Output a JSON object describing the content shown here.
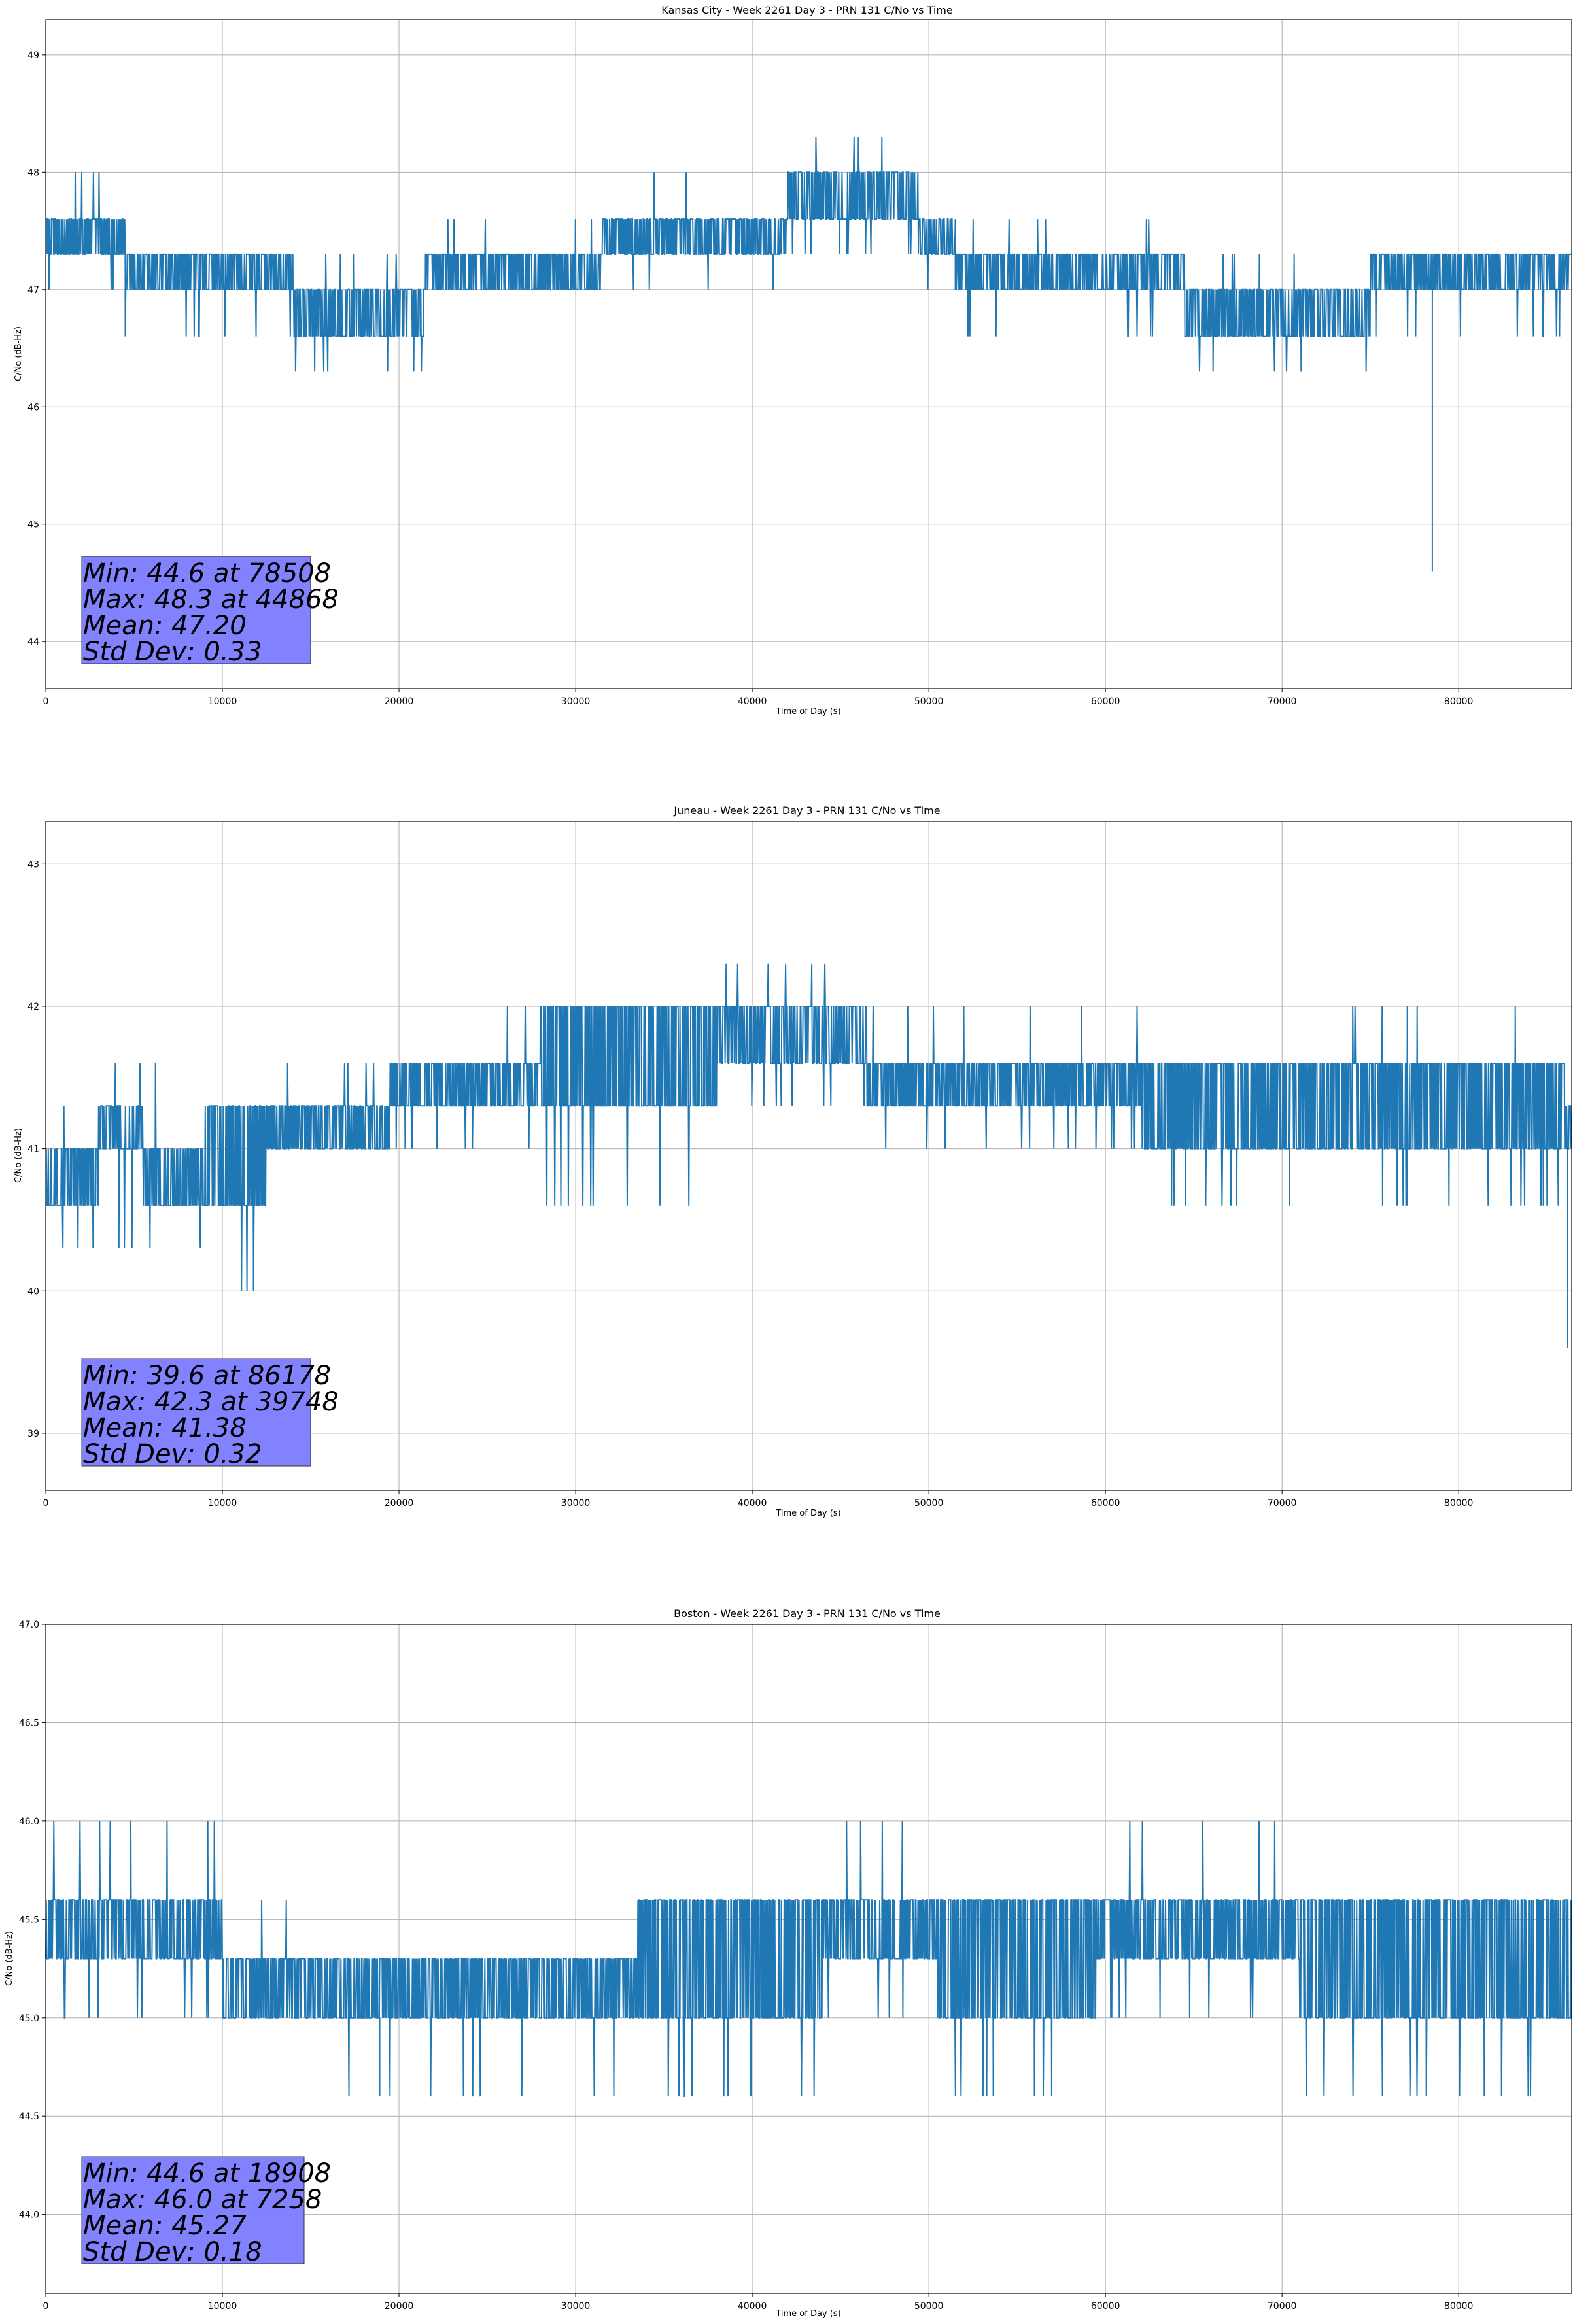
{
  "chart_data": [
    {
      "type": "line",
      "title": "Kansas City - Week 2261 Day 3 - PRN 131 C/No vs Time",
      "xlabel": "Time of Day (s)",
      "ylabel": "C/No (dB-Hz)",
      "xlim": [
        0,
        86400
      ],
      "ylim": [
        43.6,
        49.3
      ],
      "x_ticks": [
        0,
        10000,
        20000,
        30000,
        40000,
        50000,
        60000,
        70000,
        80000
      ],
      "y_ticks": [
        44,
        45,
        46,
        47,
        48,
        49
      ],
      "y_tick_labels": [
        "44",
        "45",
        "46",
        "47",
        "48",
        "49"
      ],
      "grid": true,
      "series": [
        {
          "name": "C/No",
          "color": "#1f77b4",
          "bands": [
            {
              "x": [
                0,
                4500
              ],
              "low": 47.3,
              "high": 47.6,
              "dips": [
                47.0
              ],
              "spikes": [
                48.0
              ],
              "density": 1.4
            },
            {
              "x": [
                4500,
                14000
              ],
              "low": 47.0,
              "high": 47.3,
              "dips": [
                46.6
              ],
              "spikes": [],
              "density": 1.3
            },
            {
              "x": [
                14000,
                21500
              ],
              "low": 46.6,
              "high": 47.0,
              "dips": [
                46.3
              ],
              "spikes": [
                47.3
              ],
              "density": 1.3
            },
            {
              "x": [
                21500,
                31500
              ],
              "low": 47.0,
              "high": 47.3,
              "dips": [],
              "spikes": [
                47.6
              ],
              "density": 1.4
            },
            {
              "x": [
                31500,
                42000
              ],
              "low": 47.3,
              "high": 47.6,
              "dips": [
                47.0
              ],
              "spikes": [
                48.0
              ],
              "density": 1.4
            },
            {
              "x": [
                42000,
                49500
              ],
              "low": 47.6,
              "high": 48.0,
              "dips": [
                47.3
              ],
              "spikes": [
                48.3
              ],
              "density": 1.2
            },
            {
              "x": [
                49500,
                51500
              ],
              "low": 47.3,
              "high": 47.6,
              "dips": [
                47.0
              ],
              "spikes": [],
              "density": 1.0
            },
            {
              "x": [
                51500,
                64500
              ],
              "low": 47.0,
              "high": 47.3,
              "dips": [
                46.6
              ],
              "spikes": [
                47.6
              ],
              "density": 1.4
            },
            {
              "x": [
                64500,
                75000
              ],
              "low": 46.6,
              "high": 47.0,
              "dips": [
                46.3
              ],
              "spikes": [
                47.3
              ],
              "density": 1.3
            },
            {
              "x": [
                75000,
                86400
              ],
              "low": 47.0,
              "high": 47.3,
              "dips": [
                46.6
              ],
              "spikes": [],
              "density": 1.3
            }
          ],
          "min_point": {
            "x": 78508,
            "y": 44.6
          }
        }
      ],
      "stats": {
        "min_text": "Min: 44.6 at 78508",
        "max_text": "Max: 48.3 at 44868",
        "mean_text": "Mean: 47.20",
        "std_text": "Std Dev: 0.33"
      },
      "stats_box_color": "#8080ff"
    },
    {
      "type": "line",
      "title": "Juneau - Week 2261 Day 3 - PRN 131 C/No vs Time",
      "xlabel": "Time of Day (s)",
      "ylabel": "C/No (dB-Hz)",
      "xlim": [
        0,
        86400
      ],
      "ylim": [
        38.6,
        43.3
      ],
      "x_ticks": [
        0,
        10000,
        20000,
        30000,
        40000,
        50000,
        60000,
        70000,
        80000
      ],
      "y_ticks": [
        39,
        40,
        41,
        42,
        43
      ],
      "y_tick_labels": [
        "39",
        "40",
        "41",
        "42",
        "43"
      ],
      "grid": true,
      "series": [
        {
          "name": "C/No",
          "color": "#1f77b4",
          "bands": [
            {
              "x": [
                0,
                3000
              ],
              "low": 40.6,
              "high": 41.0,
              "dips": [
                40.3
              ],
              "spikes": [
                41.3
              ],
              "density": 1.3
            },
            {
              "x": [
                3000,
                5500
              ],
              "low": 41.0,
              "high": 41.3,
              "dips": [
                40.3
              ],
              "spikes": [
                41.6
              ],
              "density": 1.3
            },
            {
              "x": [
                5500,
                9000
              ],
              "low": 40.6,
              "high": 41.0,
              "dips": [
                40.3
              ],
              "spikes": [
                41.6
              ],
              "density": 1.3
            },
            {
              "x": [
                9000,
                12500
              ],
              "low": 40.6,
              "high": 41.3,
              "dips": [
                40.0
              ],
              "spikes": [],
              "density": 1.3
            },
            {
              "x": [
                12500,
                19500
              ],
              "low": 41.0,
              "high": 41.3,
              "dips": [],
              "spikes": [
                41.6
              ],
              "density": 1.4
            },
            {
              "x": [
                19500,
                28000
              ],
              "low": 41.3,
              "high": 41.6,
              "dips": [
                41.0
              ],
              "spikes": [
                42.0
              ],
              "density": 1.4
            },
            {
              "x": [
                28000,
                38000
              ],
              "low": 41.3,
              "high": 42.0,
              "dips": [
                40.6
              ],
              "spikes": [],
              "density": 1.4
            },
            {
              "x": [
                38000,
                46500
              ],
              "low": 41.6,
              "high": 42.0,
              "dips": [
                41.3
              ],
              "spikes": [
                42.3
              ],
              "density": 1.2
            },
            {
              "x": [
                46500,
                62000
              ],
              "low": 41.3,
              "high": 41.6,
              "dips": [
                41.0
              ],
              "spikes": [
                42.0
              ],
              "density": 1.4
            },
            {
              "x": [
                62000,
                74000
              ],
              "low": 41.0,
              "high": 41.6,
              "dips": [
                40.6
              ],
              "spikes": [],
              "density": 1.4
            },
            {
              "x": [
                74000,
                86000
              ],
              "low": 41.0,
              "high": 41.6,
              "dips": [
                40.6
              ],
              "spikes": [
                42.0
              ],
              "density": 1.4
            },
            {
              "x": [
                86000,
                86400
              ],
              "low": 41.0,
              "high": 41.3,
              "dips": [
                40.6
              ],
              "spikes": [],
              "density": 1.0
            }
          ],
          "min_point": {
            "x": 86178,
            "y": 39.6
          }
        }
      ],
      "stats": {
        "min_text": "Min: 39.6 at 86178",
        "max_text": "Max: 42.3 at 39748",
        "mean_text": "Mean: 41.38",
        "std_text": "Std Dev: 0.32"
      },
      "stats_box_color": "#8080ff"
    },
    {
      "type": "line",
      "title": "Boston - Week 2261 Day 3 - PRN 131 C/No vs Time",
      "xlabel": "Time of Day (s)",
      "ylabel": "C/No (dB-Hz)",
      "xlim": [
        0,
        86400
      ],
      "ylim": [
        43.6,
        47.0
      ],
      "x_ticks": [
        0,
        10000,
        20000,
        30000,
        40000,
        50000,
        60000,
        70000,
        80000
      ],
      "y_ticks": [
        44.0,
        44.5,
        45.0,
        45.5,
        46.0,
        46.5,
        47.0
      ],
      "y_tick_labels": [
        "44.0",
        "44.5",
        "45.0",
        "45.5",
        "46.0",
        "46.5",
        "47.0"
      ],
      "grid": true,
      "series": [
        {
          "name": "C/No",
          "color": "#1f77b4",
          "bands": [
            {
              "x": [
                0,
                10000
              ],
              "low": 45.3,
              "high": 45.6,
              "dips": [
                45.0
              ],
              "spikes": [
                46.0
              ],
              "density": 1.3
            },
            {
              "x": [
                10000,
                16000
              ],
              "low": 45.0,
              "high": 45.3,
              "dips": [],
              "spikes": [
                45.6
              ],
              "density": 1.3
            },
            {
              "x": [
                16000,
                33500
              ],
              "low": 45.0,
              "high": 45.3,
              "dips": [
                44.6
              ],
              "spikes": [],
              "density": 1.4
            },
            {
              "x": [
                33500,
                44000
              ],
              "low": 45.0,
              "high": 45.6,
              "dips": [
                44.6
              ],
              "spikes": [],
              "density": 1.4
            },
            {
              "x": [
                44000,
                50500
              ],
              "low": 45.3,
              "high": 45.6,
              "dips": [
                45.0
              ],
              "spikes": [
                46.0
              ],
              "density": 1.3
            },
            {
              "x": [
                50500,
                59500
              ],
              "low": 45.0,
              "high": 45.6,
              "dips": [
                44.6
              ],
              "spikes": [],
              "density": 1.4
            },
            {
              "x": [
                59500,
                71000
              ],
              "low": 45.3,
              "high": 45.6,
              "dips": [
                45.0
              ],
              "spikes": [
                46.0
              ],
              "density": 1.3
            },
            {
              "x": [
                71000,
                86400
              ],
              "low": 45.0,
              "high": 45.6,
              "dips": [
                44.6
              ],
              "spikes": [],
              "density": 1.4
            }
          ],
          "min_point": {
            "x": 18908,
            "y": 44.6
          }
        }
      ],
      "stats": {
        "min_text": "Min: 44.6 at 18908",
        "max_text": "Max: 46.0 at 7258",
        "mean_text": "Mean: 45.27",
        "std_text": "Std Dev: 0.18"
      },
      "stats_box_color": "#8080ff"
    }
  ]
}
